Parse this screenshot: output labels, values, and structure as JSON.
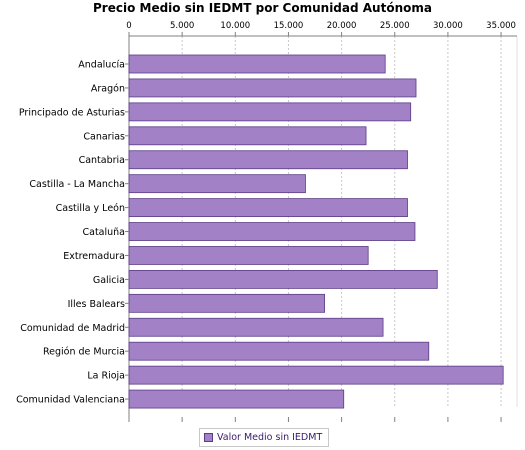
{
  "chart_data": {
    "type": "bar",
    "orientation": "horizontal",
    "title": "Precio Medio sin IEDMT por Comunidad Autónoma",
    "categories": [
      "Andalucía",
      "Aragón",
      "Principado de Asturias",
      "Canarias",
      "Cantabria",
      "Castilla - La Mancha",
      "Castilla y León",
      "Cataluña",
      "Extremadura",
      "Galicia",
      "Illes Balears",
      "Comunidad de Madrid",
      "Región de Murcia",
      "La Rioja",
      "Comunidad Valenciana"
    ],
    "series": [
      {
        "name": "Valor Medio sin IEDMT",
        "values": [
          24100,
          27000,
          26500,
          22300,
          26200,
          16600,
          26200,
          26900,
          22500,
          29000,
          18400,
          23900,
          28200,
          35200,
          20200
        ]
      }
    ],
    "xlim": [
      0,
      36500
    ],
    "tick_values": [
      0,
      5000,
      10000,
      15000,
      20000,
      25000,
      30000,
      35000
    ],
    "tick_labels": [
      "0",
      "5.000",
      "10.000",
      "15.000",
      "20.000",
      "25.000",
      "30.000",
      "35.000"
    ],
    "axis_position": "top",
    "grid": true,
    "legend_position": "bottom",
    "bar_color": "#a281c7",
    "bar_border_color": "#5b3d85",
    "grid_color": "#c8c8c8"
  }
}
